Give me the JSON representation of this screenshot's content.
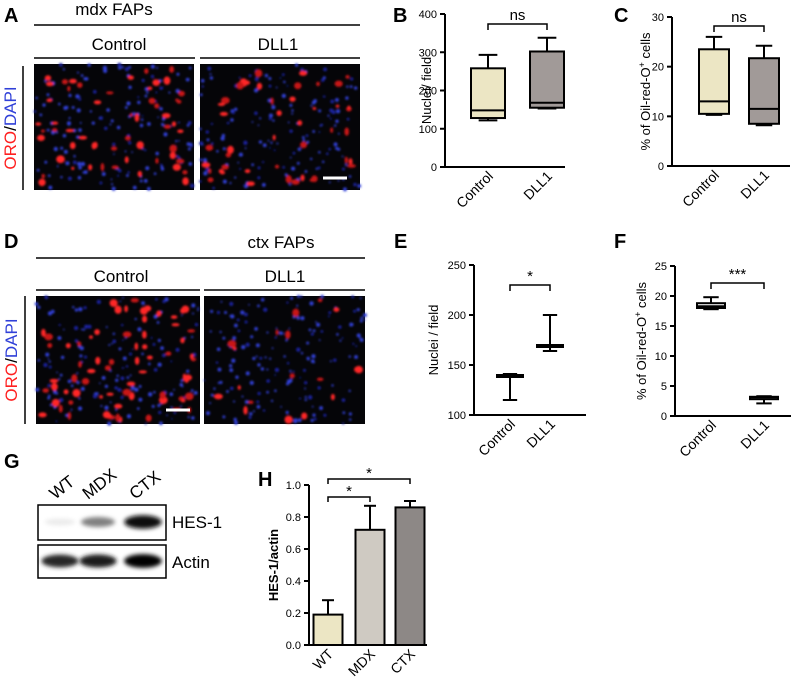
{
  "panels": {
    "A": {
      "label": "A",
      "title": "mdx FAPs",
      "groups": [
        "Control",
        "DLL1"
      ],
      "stain_red": "ORO",
      "stain_sep": "/",
      "stain_blue": "DAPI"
    },
    "D": {
      "label": "D",
      "title": "ctx FAPs",
      "groups": [
        "Control",
        "DLL1"
      ],
      "stain_red": "ORO",
      "stain_sep": "/",
      "stain_blue": "DAPI"
    },
    "G": {
      "label": "G",
      "lanes": [
        "WT",
        "MDX",
        "CTX"
      ],
      "bands": [
        "HES-1",
        "Actin"
      ],
      "hes1_intensity": [
        0.08,
        0.5,
        0.95
      ],
      "actin_intensity": [
        0.85,
        0.88,
        0.98
      ]
    }
  },
  "colors": {
    "red_stain": "#ff2020",
    "blue_stain": "#3040d8",
    "control_fill": "#ece6c4",
    "dll1_fill": "#a19a98",
    "mdx_fill": "#cfcac2",
    "ctx_fill": "#8d8886"
  },
  "chart_data": [
    {
      "id": "B",
      "label": "B",
      "type": "box",
      "categories": [
        "Control",
        "DLL1"
      ],
      "ylabel": "Nuclei/ field",
      "ylim": [
        0,
        400
      ],
      "yticks": [
        0,
        100,
        200,
        300,
        400
      ],
      "boxes": [
        {
          "min": 122,
          "q1": 128,
          "median": 148,
          "q3": 258,
          "max": 293
        },
        {
          "min": 153,
          "q1": 155,
          "median": 168,
          "q3": 302,
          "max": 338
        }
      ],
      "significance": "ns"
    },
    {
      "id": "C",
      "label": "C",
      "type": "box",
      "categories": [
        "Control",
        "DLL1"
      ],
      "ylabel_prefix": "% of Oil-red-O",
      "ylabel_sup": "+",
      "ylabel_suffix": " cells",
      "ylim": [
        0,
        30
      ],
      "yticks": [
        0,
        10,
        20,
        30
      ],
      "boxes": [
        {
          "min": 10.3,
          "q1": 10.5,
          "median": 13,
          "q3": 23.5,
          "max": 26
        },
        {
          "min": 8.2,
          "q1": 8.5,
          "median": 11.5,
          "q3": 21.7,
          "max": 24.2
        }
      ],
      "significance": "ns"
    },
    {
      "id": "E",
      "label": "E",
      "type": "box",
      "categories": [
        "Control",
        "DLL1"
      ],
      "ylabel": "Nuclei / field",
      "ylim": [
        100,
        250
      ],
      "yticks": [
        100,
        150,
        200,
        250
      ],
      "boxes": [
        {
          "min": 115,
          "q1": 138,
          "median": 138,
          "q3": 140,
          "max": 141
        },
        {
          "min": 164,
          "q1": 168,
          "median": 169,
          "q3": 170,
          "max": 200
        }
      ],
      "significance": "*"
    },
    {
      "id": "F",
      "label": "F",
      "type": "box",
      "categories": [
        "Control",
        "DLL1"
      ],
      "ylabel_prefix": "% of Oil-red-O",
      "ylabel_sup": "+",
      "ylabel_suffix": " cells",
      "ylim": [
        0,
        25
      ],
      "yticks": [
        0,
        5,
        10,
        15,
        20,
        25
      ],
      "boxes": [
        {
          "min": 17.8,
          "q1": 18,
          "median": 18.3,
          "q3": 18.8,
          "max": 19.8
        },
        {
          "min": 2.1,
          "q1": 2.8,
          "median": 3.1,
          "q3": 3.2,
          "max": 3.3
        }
      ],
      "significance": "***"
    },
    {
      "id": "H",
      "label": "H",
      "type": "bar",
      "categories": [
        "WT",
        "MDX",
        "CTX"
      ],
      "values": [
        0.19,
        0.72,
        0.86
      ],
      "errors": [
        0.09,
        0.15,
        0.04
      ],
      "ylabel": "HES-1/actin",
      "ylim": [
        0,
        1.0
      ],
      "yticks": [
        "0.0",
        "0.2",
        "0.4",
        "0.6",
        "0.8",
        "1.0"
      ],
      "significance": [
        {
          "pair": [
            "WT",
            "MDX"
          ],
          "mark": "*"
        },
        {
          "pair": [
            "WT",
            "CTX"
          ],
          "mark": "*"
        }
      ]
    }
  ]
}
